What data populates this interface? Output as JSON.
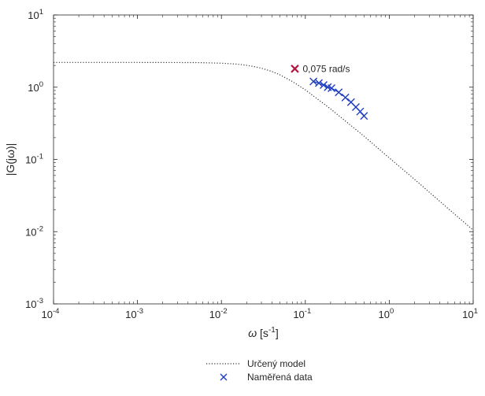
{
  "chart_data": {
    "type": "line",
    "x_scale": "log",
    "y_scale": "log",
    "xlim": [
      0.0001,
      10
    ],
    "ylim": [
      0.001,
      10
    ],
    "x_ticks": [
      {
        "value": 0.0001,
        "base": "10",
        "exp": "-4"
      },
      {
        "value": 0.001,
        "base": "10",
        "exp": "-3"
      },
      {
        "value": 0.01,
        "base": "10",
        "exp": "-2"
      },
      {
        "value": 0.1,
        "base": "10",
        "exp": "-1"
      },
      {
        "value": 1,
        "base": "10",
        "exp": "0"
      },
      {
        "value": 10,
        "base": "10",
        "exp": "1"
      }
    ],
    "y_ticks": [
      {
        "value": 0.001,
        "base": "10",
        "exp": "-3"
      },
      {
        "value": 0.01,
        "base": "10",
        "exp": "-2"
      },
      {
        "value": 0.1,
        "base": "10",
        "exp": "-1"
      },
      {
        "value": 1,
        "base": "10",
        "exp": "0"
      },
      {
        "value": 10,
        "base": "10",
        "exp": "1"
      }
    ],
    "xlabel": {
      "symbol": "ω",
      "unit_open": " [s",
      "unit_exp": "-1",
      "unit_close": "]"
    },
    "ylabel": "|G(jω)|",
    "grid": false,
    "legend_position": "bottom-center (below axes)",
    "series": [
      {
        "name": "Určený model",
        "style": "dotted",
        "color": "#333333",
        "x": [
          0.0001,
          0.001,
          0.005,
          0.01,
          0.015,
          0.02,
          0.025,
          0.03,
          0.04,
          0.05,
          0.07,
          0.1,
          0.2,
          0.5,
          1,
          2,
          5,
          10
        ],
        "y": [
          2.2,
          2.2,
          2.19,
          2.15,
          2.09,
          2.01,
          1.92,
          1.83,
          1.65,
          1.48,
          1.2,
          0.92,
          0.5,
          0.21,
          0.105,
          0.053,
          0.021,
          0.0105
        ]
      },
      {
        "name": "Naměřená data",
        "style": "x-markers",
        "color": "#1f3fbf",
        "x": [
          0.125,
          0.145,
          0.165,
          0.185,
          0.205,
          0.25,
          0.3,
          0.35,
          0.4,
          0.45,
          0.5
        ],
        "y": [
          1.2,
          1.14,
          1.07,
          1.0,
          0.97,
          0.85,
          0.72,
          0.62,
          0.53,
          0.46,
          0.4
        ]
      }
    ],
    "annotations": [
      {
        "x": 0.075,
        "y": 1.8,
        "text": "0,075 rad/s",
        "marker": "x",
        "color": "#b0163f"
      }
    ]
  }
}
